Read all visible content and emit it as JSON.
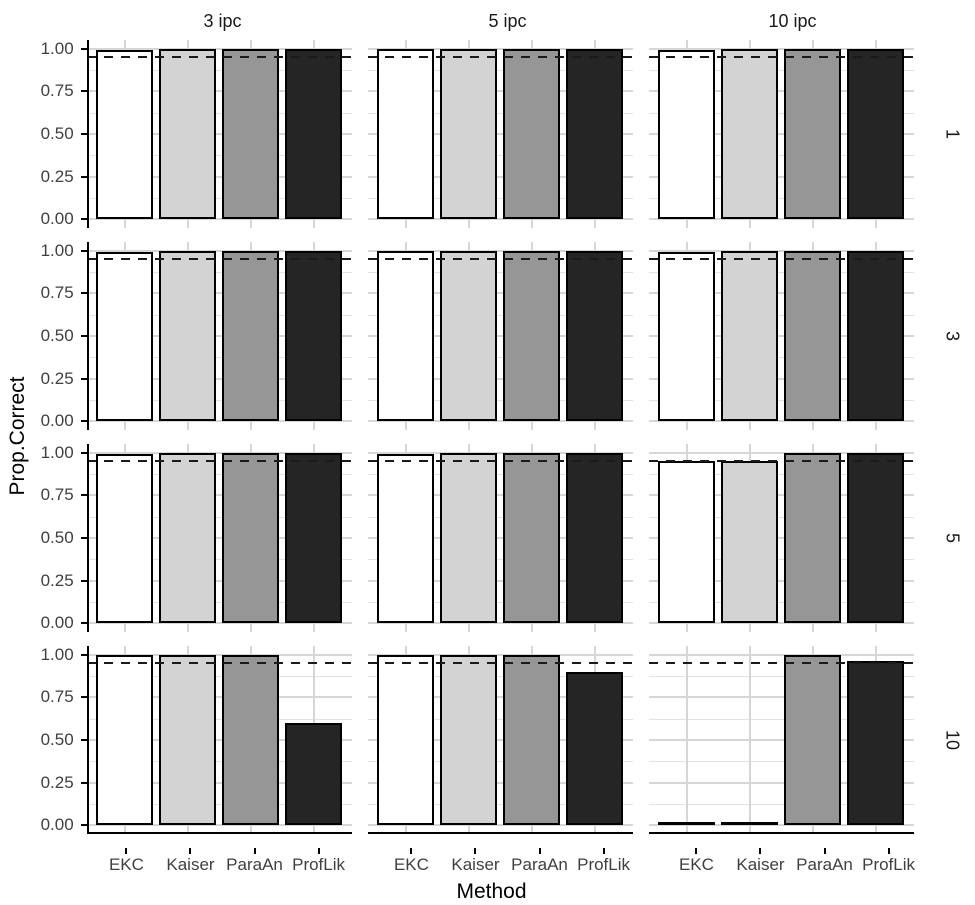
{
  "chart_data": {
    "type": "bar",
    "title": "",
    "xlabel": "Method",
    "ylabel": "Prop.Correct",
    "categories": [
      "EKC",
      "Kaiser",
      "ParaAn",
      "ProfLik"
    ],
    "col_facets": [
      "3 ipc",
      "5 ipc",
      "10 ipc"
    ],
    "row_facets": [
      "1",
      "3",
      "5",
      "10"
    ],
    "ylim": [
      0,
      1
    ],
    "y_tick_values": [
      1.0,
      0.75,
      0.5,
      0.25,
      0.0
    ],
    "y_tick_labels": [
      "1.00",
      "0.75",
      "0.50",
      "0.25",
      "0.00"
    ],
    "y_minor_gridlines": [
      0.125,
      0.375,
      0.625,
      0.875
    ],
    "reference_line": 0.95,
    "legend": "none",
    "grid": "on",
    "panels": [
      {
        "row_facet": "1",
        "col_facet": "3 ipc",
        "values": [
          0.99,
          1.0,
          1.0,
          1.0
        ]
      },
      {
        "row_facet": "1",
        "col_facet": "5 ipc",
        "values": [
          1.0,
          1.0,
          1.0,
          1.0
        ]
      },
      {
        "row_facet": "1",
        "col_facet": "10 ipc",
        "values": [
          0.99,
          1.0,
          1.0,
          1.0
        ]
      },
      {
        "row_facet": "3",
        "col_facet": "3 ipc",
        "values": [
          0.99,
          1.0,
          1.0,
          1.0
        ]
      },
      {
        "row_facet": "3",
        "col_facet": "5 ipc",
        "values": [
          1.0,
          1.0,
          1.0,
          1.0
        ]
      },
      {
        "row_facet": "3",
        "col_facet": "10 ipc",
        "values": [
          0.99,
          1.0,
          1.0,
          1.0
        ]
      },
      {
        "row_facet": "5",
        "col_facet": "3 ipc",
        "values": [
          0.99,
          1.0,
          1.0,
          1.0
        ]
      },
      {
        "row_facet": "5",
        "col_facet": "5 ipc",
        "values": [
          0.99,
          1.0,
          1.0,
          1.0
        ]
      },
      {
        "row_facet": "5",
        "col_facet": "10 ipc",
        "values": [
          0.95,
          0.95,
          1.0,
          1.0
        ]
      },
      {
        "row_facet": "10",
        "col_facet": "3 ipc",
        "values": [
          1.0,
          1.0,
          1.0,
          0.6
        ]
      },
      {
        "row_facet": "10",
        "col_facet": "5 ipc",
        "values": [
          1.0,
          1.0,
          1.0,
          0.9
        ]
      },
      {
        "row_facet": "10",
        "col_facet": "10 ipc",
        "values": [
          0.01,
          0.01,
          1.0,
          0.96
        ]
      }
    ],
    "colors": {
      "bar_fills": [
        "#FFFFFF",
        "#D3D3D3",
        "#969696",
        "#252525"
      ],
      "bar_border": "#000000",
      "grid_major": "#D6D6D6",
      "grid_minor": "#E3E3E3",
      "axis_line": "#000000",
      "tick_text": "#404040",
      "title_text": "#000000",
      "reference_line_color": "#1A1A1A",
      "background": "#FFFFFF"
    }
  }
}
